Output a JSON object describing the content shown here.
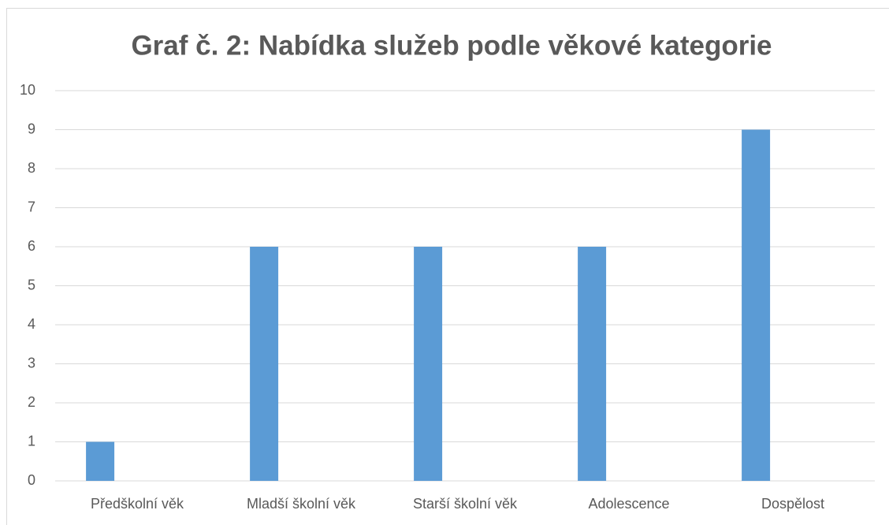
{
  "chart_data": {
    "type": "bar",
    "title": "Graf č. 2: Nabídka služeb podle věkové kategorie",
    "categories": [
      "Předškolní věk",
      "Mladší školní věk",
      "Starší školní věk",
      "Adolescence",
      "Dospělost"
    ],
    "values": [
      1,
      6,
      6,
      6,
      9
    ],
    "color": "#5b9bd5",
    "ylim": [
      0,
      10
    ],
    "yticks": [
      0,
      1,
      2,
      3,
      4,
      5,
      6,
      7,
      8,
      9,
      10
    ],
    "grid": true
  }
}
